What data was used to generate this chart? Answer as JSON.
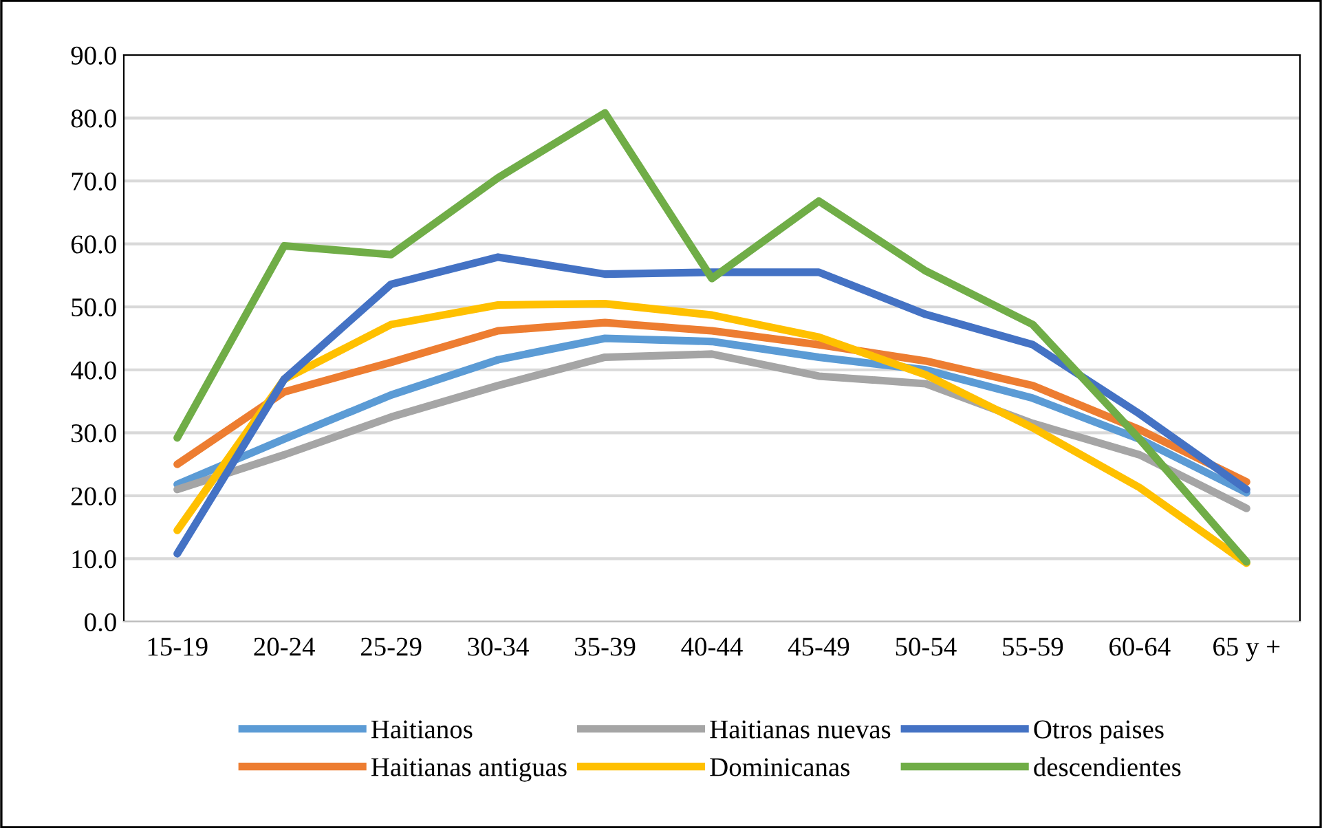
{
  "chart_data": {
    "type": "line",
    "categories": [
      "15-19",
      "20-24",
      "25-29",
      "30-34",
      "35-39",
      "40-44",
      "45-49",
      "50-54",
      "55-59",
      "60-64",
      "65 y +"
    ],
    "series": [
      {
        "name": "Haitianos",
        "color": "#5b9bd5",
        "values": [
          21.8,
          29.0,
          36.0,
          41.6,
          45.0,
          44.5,
          42.0,
          40.0,
          35.5,
          29.0,
          20.5
        ]
      },
      {
        "name": "Haitianas antiguas",
        "color": "#ed7d31",
        "values": [
          25.0,
          36.5,
          41.2,
          46.2,
          47.5,
          46.2,
          44.0,
          41.4,
          37.5,
          30.5,
          22.2
        ]
      },
      {
        "name": "Haitianas nuevas",
        "color": "#a5a5a5",
        "values": [
          21.0,
          26.5,
          32.5,
          37.5,
          42.0,
          42.5,
          39.0,
          37.8,
          31.5,
          26.5,
          18.0
        ]
      },
      {
        "name": "Dominicanas",
        "color": "#ffc000",
        "values": [
          14.5,
          38.5,
          47.2,
          50.3,
          50.5,
          48.7,
          45.2,
          39.2,
          30.8,
          21.3,
          9.3
        ]
      },
      {
        "name": "Otros paises",
        "color": "#4472c4",
        "values": [
          10.8,
          38.5,
          53.6,
          57.9,
          55.2,
          55.5,
          55.5,
          48.8,
          44.0,
          33.0,
          21.0
        ]
      },
      {
        "name": "descendientes",
        "color": "#70ad47",
        "values": [
          29.2,
          59.7,
          58.3,
          70.5,
          80.8,
          54.5,
          66.8,
          55.7,
          47.2,
          29.0,
          9.5
        ]
      }
    ],
    "ylim": [
      0,
      90
    ],
    "yticks": [
      {
        "value": 0,
        "label": "0.0"
      },
      {
        "value": 10,
        "label": "10.0"
      },
      {
        "value": 20,
        "label": "20.0"
      },
      {
        "value": 30,
        "label": "30.0"
      },
      {
        "value": 40,
        "label": "40.0"
      },
      {
        "value": 50,
        "label": "50.0"
      },
      {
        "value": 60,
        "label": "60.0"
      },
      {
        "value": 70,
        "label": "70.0"
      },
      {
        "value": 80,
        "label": "80.0"
      },
      {
        "value": 90,
        "label": "90.0"
      }
    ],
    "grid": "y",
    "legend": "bottom",
    "marker": "none",
    "line_style": "solid"
  }
}
